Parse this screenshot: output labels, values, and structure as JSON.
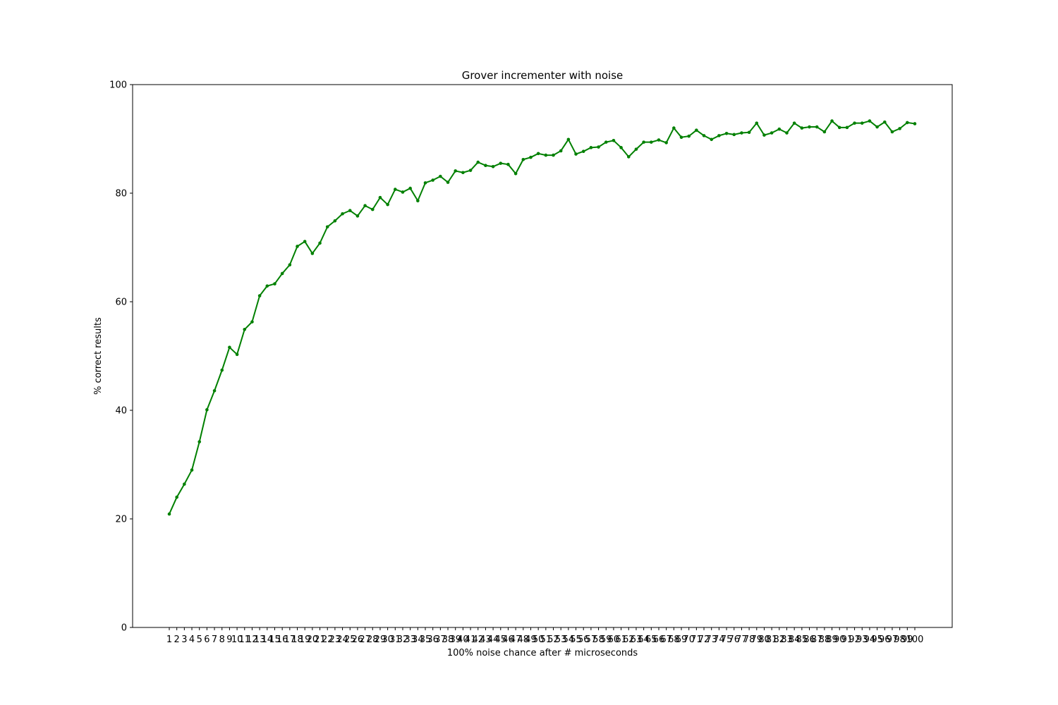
{
  "chart_data": {
    "type": "line",
    "title": "Grover incrementer with noise",
    "xlabel": "100% noise chance after # microseconds",
    "ylabel": "% correct results",
    "ylim": [
      0,
      100
    ],
    "yticks": [
      0,
      20,
      40,
      60,
      80,
      100
    ],
    "grid": false,
    "legend": "none",
    "categories": [
      "1",
      "2",
      "3",
      "4",
      "5",
      "6",
      "7",
      "8",
      "9",
      "10",
      "11",
      "12",
      "13",
      "14",
      "15",
      "16",
      "17",
      "18",
      "19",
      "20",
      "21",
      "22",
      "23",
      "24",
      "25",
      "26",
      "27",
      "28",
      "29",
      "30",
      "31",
      "32",
      "33",
      "34",
      "35",
      "36",
      "37",
      "38",
      "39",
      "40",
      "41",
      "42",
      "43",
      "44",
      "45",
      "46",
      "47",
      "48",
      "49",
      "50",
      "51",
      "52",
      "53",
      "54",
      "55",
      "56",
      "57",
      "58",
      "59",
      "60",
      "61",
      "62",
      "63",
      "64",
      "65",
      "66",
      "67",
      "68",
      "69",
      "70",
      "71",
      "72",
      "73",
      "74",
      "75",
      "76",
      "77",
      "78",
      "79",
      "80",
      "81",
      "82",
      "83",
      "84",
      "85",
      "86",
      "87",
      "88",
      "89",
      "90",
      "91",
      "92",
      "93",
      "94",
      "95",
      "96",
      "97",
      "98",
      "99",
      "100"
    ],
    "series": [
      {
        "color": "#008000",
        "values": [
          20.9,
          24.0,
          26.4,
          29.0,
          34.2,
          40.1,
          43.6,
          47.4,
          51.6,
          50.3,
          54.9,
          56.3,
          61.1,
          62.9,
          63.3,
          65.2,
          66.8,
          70.2,
          71.1,
          68.9,
          70.8,
          73.8,
          74.9,
          76.2,
          76.8,
          75.8,
          77.7,
          77.0,
          79.2,
          77.9,
          80.7,
          80.2,
          80.9,
          78.6,
          81.9,
          82.4,
          83.1,
          82.0,
          84.1,
          83.8,
          84.2,
          85.7,
          85.1,
          84.9,
          85.5,
          85.3,
          83.6,
          86.2,
          86.6,
          87.3,
          87.0,
          87.0,
          87.8,
          89.9,
          87.2,
          87.7,
          88.4,
          88.5,
          89.4,
          89.7,
          88.4,
          86.7,
          88.1,
          89.4,
          89.4,
          89.8,
          89.3,
          92.0,
          90.3,
          90.5,
          91.6,
          90.6,
          89.9,
          90.6,
          91.0,
          90.8,
          91.1,
          91.2,
          92.9,
          90.7,
          91.1,
          91.8,
          91.1,
          92.9,
          92.0,
          92.2,
          92.2,
          91.3,
          93.3,
          92.1,
          92.1,
          92.9,
          92.9,
          93.3,
          92.2,
          93.1,
          91.3,
          91.9,
          93.0,
          92.8
        ]
      }
    ]
  }
}
